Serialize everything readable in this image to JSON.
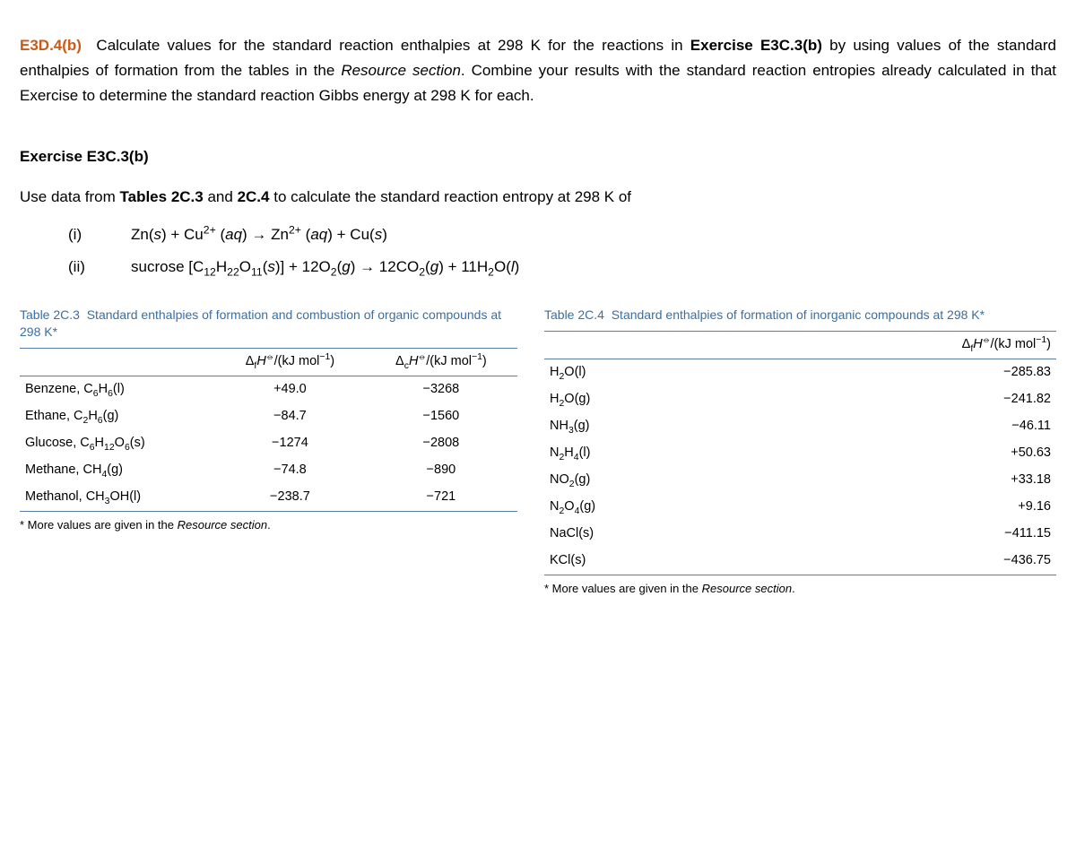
{
  "header": {
    "label": "E3D.4(b)",
    "text_parts": {
      "a": "Calculate values for the standard reaction enthalpies at 298 K for the reactions in ",
      "b_bold": "Exercise E3C.3(b)",
      "c": " by using values of the standard enthalpies of formation from the tables in the ",
      "d_italic": "Resource section",
      "e": ". Combine your results with the standard reaction entropies already calculated in that Exercise to determine the standard reaction Gibbs energy at 298 K for each."
    }
  },
  "sub_exercise": {
    "heading": "Exercise E3C.3(b)",
    "intro_a": "Use data from ",
    "intro_b_bold": "Tables 2C.3",
    "intro_c": " and ",
    "intro_d_bold": "2C.4",
    "intro_e": " to calculate the standard reaction entropy at 298 K of",
    "items": [
      {
        "num": "(i)",
        "eq_html": "Zn(<i>s</i>) + Cu<sup>2+</sup> (<i>aq</i>) → Zn<sup>2+</sup> (<i>aq</i>) + Cu(<i>s</i>)"
      },
      {
        "num": "(ii)",
        "eq_html": "sucrose [C<sub>12</sub>H<sub>22</sub>O<sub>11</sub>(<i>s</i>)] + 12O<sub>2</sub>(<i>g</i>) → 12CO<sub>2</sub>(<i>g</i>) + 11H<sub>2</sub>O(<i>l</i>)"
      }
    ]
  },
  "table2c3": {
    "title_html": "<span style=\"color:#3a6fa3\">Table 2C.3</span>&nbsp;&nbsp;Standard enthalpies of formation and combustion of organic compounds at 298 K*",
    "headers": [
      "",
      "Δ<sub>f</sub><i>H</i><sup>⦵</sup>/(kJ mol<sup>−1</sup>)",
      "Δ<sub>c</sub><i>H</i><sup>⦵</sup>/(kJ mol<sup>−1</sup>)"
    ],
    "rows": [
      [
        "Benzene, C<sub>6</sub>H<sub>6</sub>(l)",
        "+49.0",
        "−3268"
      ],
      [
        "Ethane, C<sub>2</sub>H<sub>6</sub>(g)",
        "−84.7",
        "−1560"
      ],
      [
        "Glucose, C<sub>6</sub>H<sub>12</sub>O<sub>6</sub>(s)",
        "−1274",
        "−2808"
      ],
      [
        "Methane, CH<sub>4</sub>(g)",
        "−74.8",
        "−890"
      ],
      [
        "Methanol, CH<sub>3</sub>OH(l)",
        "−238.7",
        "−721"
      ]
    ],
    "footnote_html": "* More values are given in the <i>Resource section</i>.",
    "col_align": [
      "left",
      "center",
      "center"
    ]
  },
  "table2c4": {
    "title_html": "<span style=\"color:#3a6fa3\">Table 2C.4</span>&nbsp;&nbsp;Standard enthalpies of formation of inorganic compounds at 298 K*",
    "headers": [
      "",
      "Δ<sub>f</sub><i>H</i><sup>⦵</sup>/(kJ mol<sup>−1</sup>)"
    ],
    "rows": [
      [
        "H<sub>2</sub>O(l)",
        "−285.83"
      ],
      [
        "H<sub>2</sub>O(g)",
        "−241.82"
      ],
      [
        "NH<sub>3</sub>(g)",
        "−46.11"
      ],
      [
        "N<sub>2</sub>H<sub>4</sub>(l)",
        "+50.63"
      ],
      [
        "NO<sub>2</sub>(g)",
        "+33.18"
      ],
      [
        "N<sub>2</sub>O<sub>4</sub>(g)",
        "+9.16"
      ],
      [
        "NaCl(s)",
        "−411.15"
      ],
      [
        "KCl(s)",
        "−436.75"
      ]
    ],
    "footnote_html": "* More values are given in the <i>Resource section</i>.",
    "col_align": [
      "left",
      "right"
    ]
  },
  "colors": {
    "label": "#ca5a1a",
    "table_accent": "#3a6fa3",
    "rule": "#5a7da3",
    "text": "#000000",
    "background": "#ffffff"
  }
}
